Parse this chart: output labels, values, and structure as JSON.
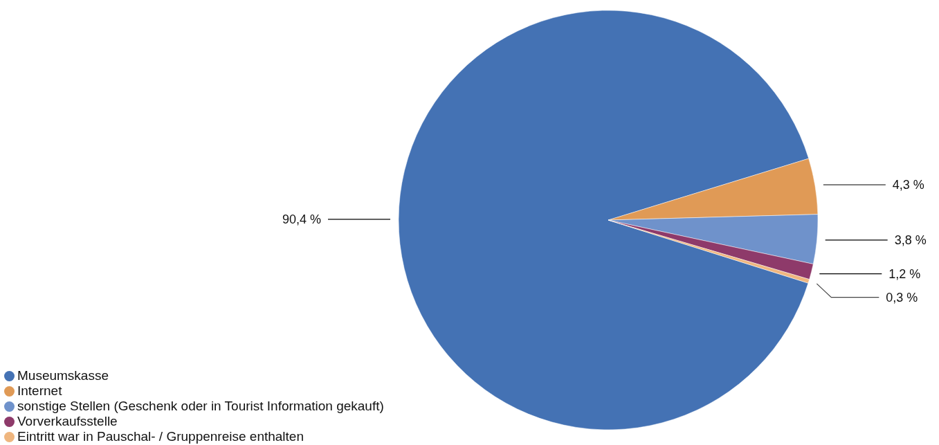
{
  "chart_data": {
    "type": "pie",
    "categories": [
      "Museumskasse",
      "Internet",
      "sonstige Stellen (Geschenk oder in Tourist Information gekauft)",
      "Vorverkaufsstelle",
      "Eintritt war in Pauschal- / Gruppenreise enthalten"
    ],
    "values": [
      90.4,
      4.3,
      3.8,
      1.2,
      0.3
    ],
    "colors": [
      "#4472b4",
      "#e09a56",
      "#6f92cb",
      "#8e3a6a",
      "#efb67f"
    ],
    "value_labels": [
      "90,4 %",
      "4,3 %",
      "3,8 %",
      "1,2 %",
      "0,3 %"
    ],
    "legend": "bottom left"
  }
}
